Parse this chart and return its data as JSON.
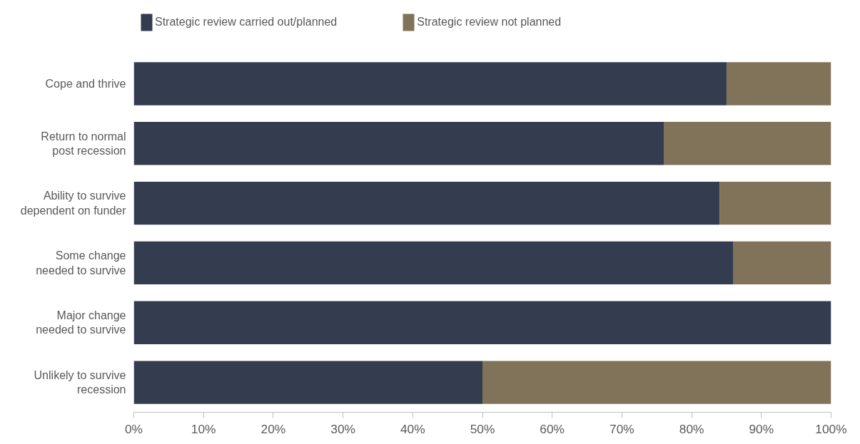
{
  "chart_data": {
    "type": "bar",
    "orientation": "horizontal",
    "stacked": true,
    "categories": [
      "Cope and thrive",
      "Return to normal\npost recession",
      "Ability to survive\ndependent on funder",
      "Some change\nneeded to survive",
      "Major change\nneeded to survive",
      "Unlikely to survive\nrecession"
    ],
    "series": [
      {
        "name": "Strategic review carried out/planned",
        "color": "#333d4f",
        "values": [
          85,
          76,
          84,
          86,
          100,
          50
        ]
      },
      {
        "name": "Strategic review not planned",
        "color": "#807359",
        "values": [
          15,
          24,
          16,
          14,
          0,
          50
        ]
      }
    ],
    "xlim": [
      0,
      100
    ],
    "xticks": [
      {
        "value": 0,
        "label": "0%"
      },
      {
        "value": 10,
        "label": "10%"
      },
      {
        "value": 20,
        "label": "20%"
      },
      {
        "value": 30,
        "label": "30%"
      },
      {
        "value": 40,
        "label": "40%"
      },
      {
        "value": 50,
        "label": "50%"
      },
      {
        "value": 60,
        "label": "60%"
      },
      {
        "value": 70,
        "label": "70%"
      },
      {
        "value": 80,
        "label": "80%"
      },
      {
        "value": 90,
        "label": "90%"
      },
      {
        "value": 100,
        "label": "100%"
      }
    ],
    "legend": "top left",
    "grid": false
  }
}
